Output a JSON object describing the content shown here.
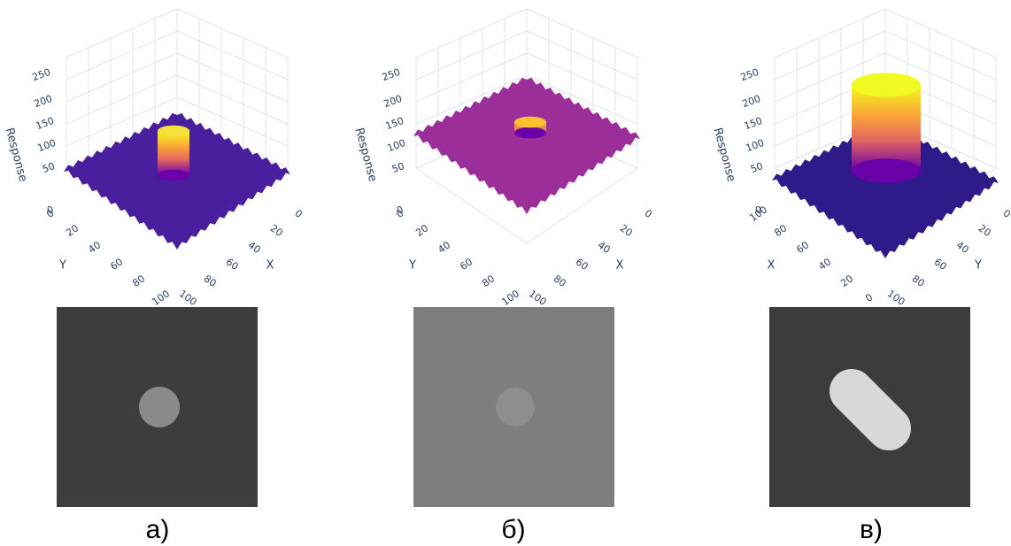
{
  "panels": [
    {
      "z_title": "Response",
      "z_ticks": [
        0,
        50,
        100,
        150,
        200,
        250
      ],
      "left_title": "Y",
      "left_ticks": [
        0,
        20,
        40,
        60,
        80,
        100
      ],
      "right_title": "X",
      "right_ticks": [
        0,
        20,
        40,
        60,
        80,
        100
      ],
      "caption": "а)"
    },
    {
      "z_title": "Response",
      "z_ticks": [
        0,
        50,
        100,
        150,
        200,
        250
      ],
      "left_title": "Y",
      "left_ticks": [
        0,
        20,
        40,
        60,
        80,
        100
      ],
      "right_title": "X",
      "right_ticks": [
        0,
        20,
        40,
        60,
        80,
        100
      ],
      "caption": "б)"
    },
    {
      "z_title": "Response",
      "z_ticks": [
        0,
        50,
        100,
        150,
        200,
        250
      ],
      "left_title": "X",
      "left_ticks": [
        100,
        80,
        60,
        40,
        20,
        0
      ],
      "right_title": "Y",
      "right_ticks": [
        0,
        20,
        40,
        60,
        80,
        100
      ],
      "caption": "в)"
    }
  ]
}
